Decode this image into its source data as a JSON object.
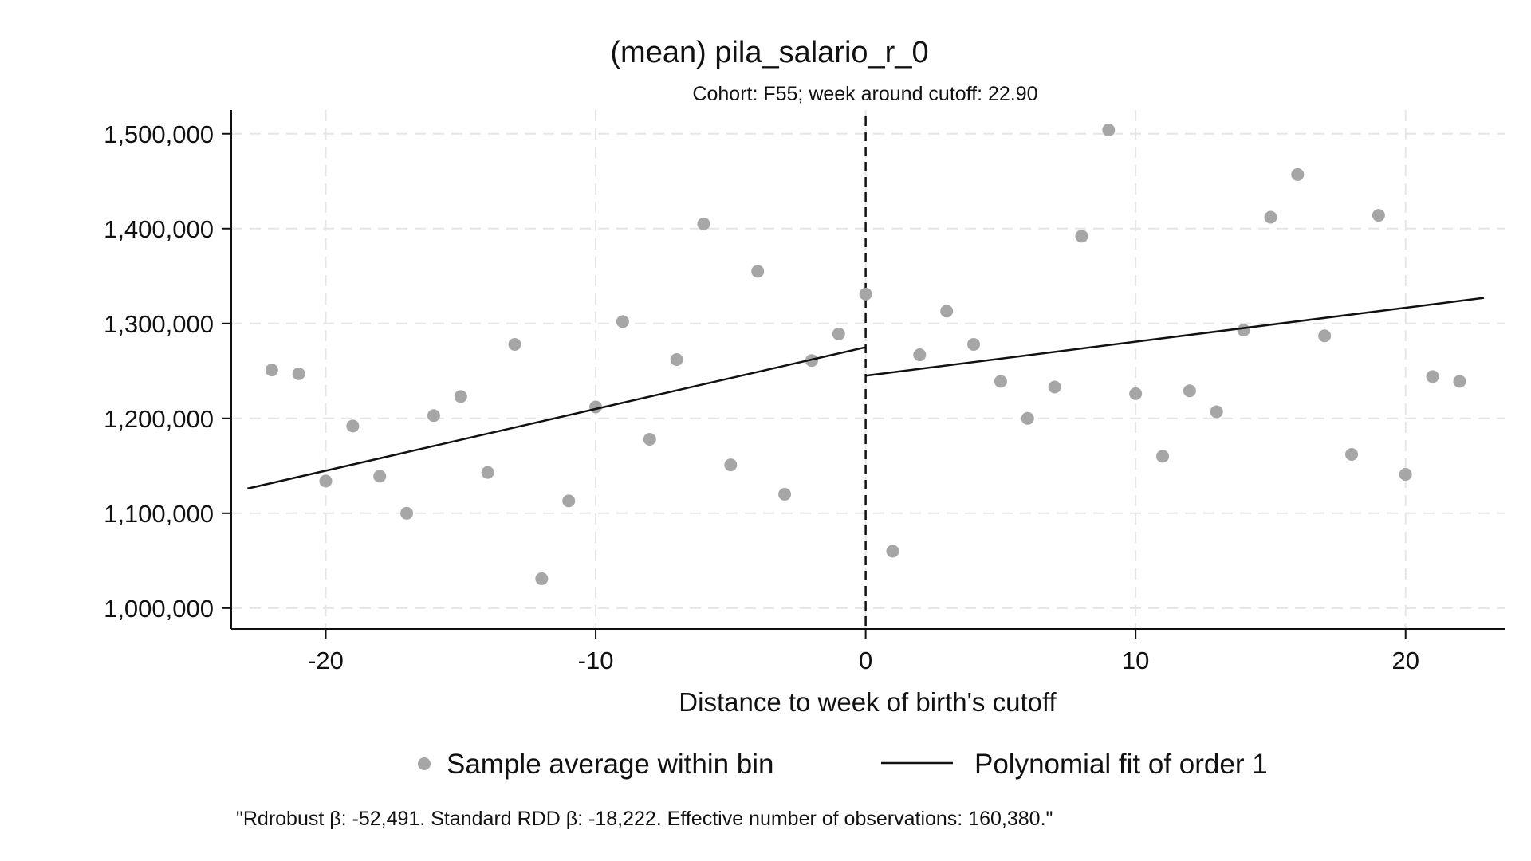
{
  "chart_data": {
    "type": "scatter",
    "title": "(mean) pila_salario_r_0",
    "subtitle": "Cohort: F55; week around cutoff: 22.90",
    "xlabel": "Distance to week of birth's cutoff",
    "ylabel": "",
    "xlim": [
      -23.5,
      23.7
    ],
    "ylim": [
      978000,
      1525000
    ],
    "x_ticks": [
      {
        "value": -20,
        "label": "-20"
      },
      {
        "value": -10,
        "label": "-10"
      },
      {
        "value": 0,
        "label": "0"
      },
      {
        "value": 10,
        "label": "10"
      },
      {
        "value": 20,
        "label": "20"
      }
    ],
    "y_ticks": [
      {
        "value": 1000000,
        "label": "1,000,000"
      },
      {
        "value": 1100000,
        "label": "1,100,000"
      },
      {
        "value": 1200000,
        "label": "1,200,000"
      },
      {
        "value": 1300000,
        "label": "1,300,000"
      },
      {
        "value": 1400000,
        "label": "1,400,000"
      },
      {
        "value": 1500000,
        "label": "1,500,000"
      }
    ],
    "grid": true,
    "cutoff_line": {
      "x": 0,
      "style": "dashed"
    },
    "series": [
      {
        "name": "Sample average within bin",
        "kind": "scatter",
        "color": "#a6a6a6",
        "points": [
          {
            "x": -22,
            "y": 1251000
          },
          {
            "x": -21,
            "y": 1247000
          },
          {
            "x": -20,
            "y": 1134000
          },
          {
            "x": -19,
            "y": 1192000
          },
          {
            "x": -18,
            "y": 1139000
          },
          {
            "x": -17,
            "y": 1100000
          },
          {
            "x": -16,
            "y": 1203000
          },
          {
            "x": -15,
            "y": 1223000
          },
          {
            "x": -14,
            "y": 1143000
          },
          {
            "x": -13,
            "y": 1278000
          },
          {
            "x": -12,
            "y": 1031000
          },
          {
            "x": -11,
            "y": 1113000
          },
          {
            "x": -10,
            "y": 1212000
          },
          {
            "x": -9,
            "y": 1302000
          },
          {
            "x": -8,
            "y": 1178000
          },
          {
            "x": -7,
            "y": 1262000
          },
          {
            "x": -6,
            "y": 1405000
          },
          {
            "x": -5,
            "y": 1151000
          },
          {
            "x": -4,
            "y": 1355000
          },
          {
            "x": -3,
            "y": 1120000
          },
          {
            "x": -2,
            "y": 1261000
          },
          {
            "x": -1,
            "y": 1289000
          },
          {
            "x": 0,
            "y": 1331000
          },
          {
            "x": 1,
            "y": 1060000
          },
          {
            "x": 2,
            "y": 1267000
          },
          {
            "x": 3,
            "y": 1313000
          },
          {
            "x": 4,
            "y": 1278000
          },
          {
            "x": 5,
            "y": 1239000
          },
          {
            "x": 6,
            "y": 1200000
          },
          {
            "x": 7,
            "y": 1233000
          },
          {
            "x": 8,
            "y": 1392000
          },
          {
            "x": 9,
            "y": 1504000
          },
          {
            "x": 10,
            "y": 1226000
          },
          {
            "x": 11,
            "y": 1160000
          },
          {
            "x": 12,
            "y": 1229000
          },
          {
            "x": 13,
            "y": 1207000
          },
          {
            "x": 14,
            "y": 1293000
          },
          {
            "x": 15,
            "y": 1412000
          },
          {
            "x": 16,
            "y": 1457000
          },
          {
            "x": 17,
            "y": 1287000
          },
          {
            "x": 18,
            "y": 1162000
          },
          {
            "x": 19,
            "y": 1414000
          },
          {
            "x": 20,
            "y": 1141000
          },
          {
            "x": 21,
            "y": 1244000
          },
          {
            "x": 22,
            "y": 1239000
          }
        ]
      },
      {
        "name": "Polynomial fit of order 1",
        "kind": "line",
        "color": "#111111",
        "segments": [
          [
            {
              "x": -22.9,
              "y": 1126000
            },
            {
              "x": 0,
              "y": 1275000
            }
          ],
          [
            {
              "x": 0,
              "y": 1245000
            },
            {
              "x": 22.9,
              "y": 1327000
            }
          ]
        ]
      }
    ],
    "legend": {
      "position": "bottom",
      "columns": 2
    },
    "note": "\"Rdrobust β: -52,491. Standard RDD β: -18,222. Effective number of observations: 160,380.\""
  }
}
